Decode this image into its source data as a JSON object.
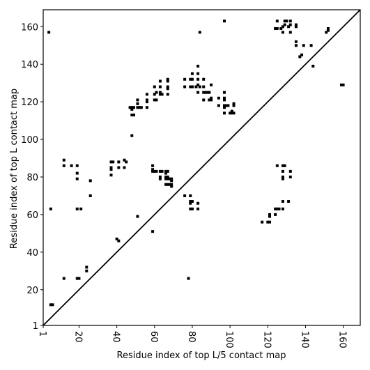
{
  "chart_data": {
    "type": "scatter",
    "xlabel": "Residue index of top L/5 contact map",
    "ylabel": "Residue index of top L contact map",
    "xlim": [
      1,
      169
    ],
    "ylim": [
      1,
      169
    ],
    "xticks": [
      1,
      20,
      40,
      60,
      80,
      100,
      120,
      140,
      160
    ],
    "yticks": [
      1,
      20,
      40,
      60,
      80,
      100,
      120,
      140,
      160
    ],
    "diagonal": true,
    "diagonal_color": "#000000",
    "series": [
      {
        "color": "#000000",
        "x": [
          4,
          5,
          5,
          6,
          12,
          12,
          12,
          16,
          19,
          19,
          19,
          19,
          21,
          19,
          20,
          24,
          24,
          26,
          26,
          37,
          38,
          37,
          37,
          37,
          40,
          41,
          41,
          41,
          44,
          45,
          44,
          47,
          48,
          49,
          48,
          48,
          49,
          48,
          51,
          51,
          51,
          51,
          52,
          53,
          56,
          56,
          56,
          56,
          59,
          59,
          59,
          59,
          60,
          61,
          63,
          63,
          63,
          64,
          60,
          61,
          60,
          61,
          60,
          63,
          63,
          63,
          64,
          63,
          66,
          67,
          66,
          66,
          67,
          66,
          67,
          68,
          69,
          69,
          66,
          67,
          68,
          69,
          69,
          67,
          67,
          67,
          67,
          67,
          76,
          79,
          79,
          80,
          79,
          79,
          80,
          83,
          83,
          83,
          83,
          83,
          82,
          83,
          84,
          78,
          76,
          79,
          80,
          80,
          76,
          79,
          80,
          83,
          84,
          86,
          86,
          86,
          87,
          88,
          89,
          86,
          89,
          90,
          90,
          90,
          94,
          94,
          97,
          97,
          97,
          97,
          97,
          97,
          98,
          99,
          100,
          101,
          101,
          102,
          102,
          102,
          97,
          117,
          120,
          121,
          121,
          121,
          124,
          124,
          125,
          126,
          128,
          128,
          131,
          125,
          128,
          129,
          128,
          128,
          128,
          132,
          132,
          124,
          125,
          125,
          127,
          128,
          128,
          129,
          129,
          130,
          131,
          132,
          132,
          132,
          135,
          135,
          135,
          135,
          139,
          137,
          138,
          143,
          144,
          151,
          152,
          152,
          159,
          160
        ],
        "y": [
          157,
          63,
          12,
          12,
          26,
          89,
          86,
          86,
          86,
          82,
          79,
          63,
          63,
          26,
          26,
          32,
          30,
          78,
          70,
          88,
          88,
          85,
          84,
          81,
          47,
          46,
          88,
          85,
          89,
          88,
          85,
          117,
          117,
          117,
          116,
          113,
          113,
          102,
          121,
          119,
          59,
          117,
          117,
          117,
          117,
          124,
          121,
          120,
          51,
          86,
          84,
          83,
          83,
          83,
          83,
          80,
          79,
          83,
          121,
          121,
          124,
          125,
          128,
          124,
          125,
          128,
          124,
          131,
          83,
          83,
          82,
          80,
          80,
          79,
          79,
          79,
          79,
          78,
          76,
          76,
          76,
          76,
          75,
          131,
          132,
          128,
          127,
          124,
          70,
          70,
          67,
          67,
          66,
          63,
          63,
          63,
          66,
          132,
          135,
          139,
          128,
          129,
          128,
          26,
          132,
          132,
          132,
          135,
          128,
          128,
          128,
          125,
          157,
          128,
          132,
          125,
          125,
          125,
          125,
          121,
          121,
          121,
          122,
          129,
          118,
          122,
          125,
          122,
          121,
          118,
          117,
          114,
          118,
          118,
          114,
          114,
          115,
          114,
          118,
          119,
          163,
          56,
          56,
          56,
          59,
          60,
          60,
          63,
          63,
          63,
          63,
          67,
          67,
          86,
          86,
          86,
          83,
          80,
          79,
          83,
          80,
          159,
          159,
          163,
          159,
          160,
          157,
          161,
          163,
          163,
          160,
          157,
          161,
          163,
          160,
          161,
          152,
          150,
          150,
          144,
          145,
          150,
          139,
          157,
          158,
          159,
          129,
          129
        ]
      }
    ]
  }
}
